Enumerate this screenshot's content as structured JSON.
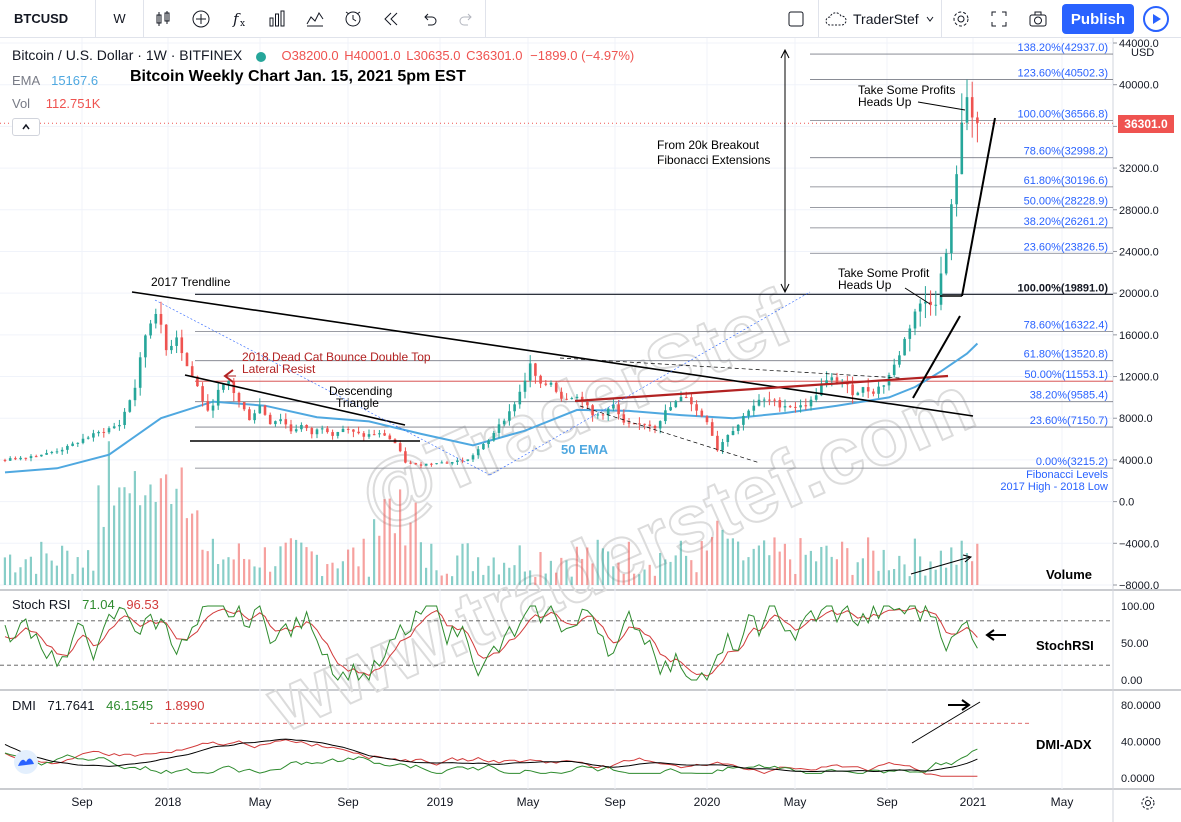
{
  "toolbar": {
    "symbol": "BTCUSD",
    "interval": "W",
    "user": "TraderStef",
    "publish_label": "Publish"
  },
  "header": {
    "title": "Bitcoin / U.S. Dollar · 1W · BITFINEX",
    "open": "O38200.0",
    "high": "H40001.0",
    "low": "L30635.0",
    "close": "C36301.0",
    "change": "−1899.0 (−4.97%)",
    "chart_heading": "Bitcoin Weekly Chart Jan. 15, 2021 5pm EST",
    "ema_label": "EMA",
    "ema_value": "15167.6",
    "vol_label": "Vol",
    "vol_value": "112.751K",
    "currency": "USD",
    "last_price": "36301.0"
  },
  "colors": {
    "up": "#26a69a",
    "down": "#ef5350",
    "ema": "#4fa8e0",
    "fib": "#787b86",
    "resist": "#b22222",
    "stoch_k": "#2e8b2e",
    "stoch_d": "#d23c3c",
    "dmi_adx": "#000000",
    "dmi_plus": "#2e8b2e",
    "dmi_minus": "#d23c3c",
    "accent": "#2962ff"
  },
  "chart_data": {
    "type": "candlestick",
    "title": "Bitcoin Weekly Chart Jan. 15, 2021 5pm EST",
    "y_axis": {
      "min": -8000,
      "max": 44000,
      "ticks": [
        "44000.0",
        "40000.0",
        "36000.0",
        "32000.0",
        "28000.0",
        "24000.0",
        "20000.0",
        "16000.0",
        "12000.0",
        "8000.0",
        "4000.0",
        "0.0",
        "−4000.0",
        "−8000.0"
      ]
    },
    "x_ticks": [
      "Sep",
      "2018",
      "May",
      "Sep",
      "2019",
      "May",
      "Sep",
      "2020",
      "May",
      "Sep",
      "2021",
      "May"
    ],
    "fib_levels": [
      {
        "label": "138.20%(42937.0)",
        "value": 42937
      },
      {
        "label": "123.60%(40502.3)",
        "value": 40502.3
      },
      {
        "label": "100.00%(36566.8)",
        "value": 36566.8
      },
      {
        "label": "78.60%(32998.2)",
        "value": 32998.2
      },
      {
        "label": "61.80%(30196.6)",
        "value": 30196.6
      },
      {
        "label": "50.00%(28228.9)",
        "value": 28228.9
      },
      {
        "label": "38.20%(26261.2)",
        "value": 26261.2
      },
      {
        "label": "23.60%(23826.5)",
        "value": 23826.5
      },
      {
        "label": "100.00%(19891.0)",
        "value": 19891
      },
      {
        "label": "78.60%(16322.4)",
        "value": 16322.4
      },
      {
        "label": "61.80%(13520.8)",
        "value": 13520.8
      },
      {
        "label": "50.00%(11553.1)",
        "value": 11553.1
      },
      {
        "label": "38.20%(9585.4)",
        "value": 9585.4
      },
      {
        "label": "23.60%(7150.7)",
        "value": 7150.7
      },
      {
        "label": "0.00%(3215.2)",
        "value": 3215.2
      }
    ],
    "fib_note_lines": [
      "Fibonacci Levels",
      "2017 High - 2018 Low"
    ],
    "annotations": {
      "trendline": "2017 Trendline",
      "dead_cat_1": "2018 Dead Cat Bounce Double Top",
      "dead_cat_2": "Lateral Resist",
      "desc_1": "Descending",
      "desc_2": "Triangle",
      "ema50": "50 EMA",
      "breakout_1": "From 20k Breakout",
      "breakout_2": "Fibonacci Extensions",
      "profit_top_1": "Take Some Profits",
      "profit_top_2": "Heads Up",
      "profit_mid_1": "Take Some Profit",
      "profit_mid_2": "Heads Up",
      "volume": "Volume",
      "watermark_1": "@TraderStef",
      "watermark_2": "www.traderstef.com"
    },
    "price_path": [
      [
        0,
        4000
      ],
      [
        8,
        4300
      ],
      [
        16,
        4600
      ],
      [
        24,
        5200
      ],
      [
        30,
        6000
      ],
      [
        36,
        6600
      ],
      [
        44,
        7400
      ],
      [
        50,
        11000
      ],
      [
        54,
        16000
      ],
      [
        58,
        18500
      ],
      [
        62,
        14500
      ],
      [
        66,
        16000
      ],
      [
        70,
        13000
      ],
      [
        74,
        11000
      ],
      [
        78,
        8500
      ],
      [
        82,
        10500
      ],
      [
        86,
        11500
      ],
      [
        90,
        9500
      ],
      [
        94,
        8000
      ],
      [
        98,
        9200
      ],
      [
        102,
        7600
      ],
      [
        106,
        8000
      ],
      [
        110,
        6800
      ],
      [
        114,
        7300
      ],
      [
        118,
        6500
      ],
      [
        122,
        7200
      ],
      [
        126,
        6500
      ],
      [
        130,
        7000
      ],
      [
        134,
        6600
      ],
      [
        138,
        6300
      ],
      [
        142,
        6500
      ],
      [
        146,
        6400
      ],
      [
        150,
        5600
      ],
      [
        154,
        3800
      ],
      [
        158,
        3500
      ],
      [
        162,
        3600
      ],
      [
        166,
        3800
      ],
      [
        170,
        3700
      ],
      [
        174,
        3900
      ],
      [
        178,
        4000
      ],
      [
        182,
        5000
      ],
      [
        186,
        5800
      ],
      [
        190,
        7500
      ],
      [
        194,
        8500
      ],
      [
        198,
        10500
      ],
      [
        202,
        13000
      ],
      [
        206,
        11000
      ],
      [
        210,
        11500
      ],
      [
        214,
        10000
      ],
      [
        218,
        10200
      ],
      [
        222,
        9800
      ],
      [
        226,
        8200
      ],
      [
        230,
        8500
      ],
      [
        234,
        9200
      ],
      [
        238,
        7400
      ],
      [
        242,
        7300
      ],
      [
        246,
        7500
      ],
      [
        250,
        7200
      ],
      [
        254,
        8600
      ],
      [
        258,
        9500
      ],
      [
        262,
        10200
      ],
      [
        266,
        8700
      ],
      [
        270,
        7800
      ],
      [
        274,
        5000
      ],
      [
        278,
        6500
      ],
      [
        282,
        7400
      ],
      [
        286,
        8900
      ],
      [
        290,
        9600
      ],
      [
        294,
        9700
      ],
      [
        298,
        9300
      ],
      [
        302,
        9200
      ],
      [
        306,
        9100
      ],
      [
        310,
        9600
      ],
      [
        314,
        11200
      ],
      [
        318,
        11700
      ],
      [
        322,
        11400
      ],
      [
        326,
        10500
      ],
      [
        330,
        10800
      ],
      [
        334,
        10600
      ],
      [
        338,
        11300
      ],
      [
        342,
        13000
      ],
      [
        346,
        15500
      ],
      [
        350,
        18300
      ],
      [
        354,
        19200
      ],
      [
        358,
        19400
      ],
      [
        362,
        23800
      ],
      [
        366,
        32000
      ],
      [
        370,
        39000
      ],
      [
        374,
        36300
      ]
    ],
    "ema50_path": [
      [
        0,
        2800
      ],
      [
        20,
        3200
      ],
      [
        40,
        4500
      ],
      [
        60,
        8000
      ],
      [
        80,
        9600
      ],
      [
        100,
        9200
      ],
      [
        120,
        8100
      ],
      [
        140,
        7700
      ],
      [
        160,
        6500
      ],
      [
        180,
        5400
      ],
      [
        200,
        6800
      ],
      [
        220,
        8800
      ],
      [
        240,
        8700
      ],
      [
        260,
        8300
      ],
      [
        280,
        8000
      ],
      [
        300,
        8500
      ],
      [
        320,
        9200
      ],
      [
        340,
        10000
      ],
      [
        350,
        11000
      ],
      [
        360,
        12500
      ],
      [
        370,
        14200
      ],
      [
        374,
        15167.6
      ]
    ],
    "volume": {
      "label": "Vol",
      "last": "112.751K"
    },
    "stoch_rsi": {
      "name": "Stoch RSI",
      "k": "71.04",
      "d": "96.53",
      "levels": [
        80,
        20
      ],
      "ticks": [
        "100.00",
        "50.00",
        "0.00"
      ],
      "tag": "StochRSI"
    },
    "dmi": {
      "name": "DMI",
      "adx": "71.7641",
      "plus_di": "46.1545",
      "minus_di": "1.8990",
      "level": 60,
      "ticks": [
        "80.0000",
        "40.0000",
        "0.0000"
      ],
      "tag": "DMI-ADX"
    }
  }
}
